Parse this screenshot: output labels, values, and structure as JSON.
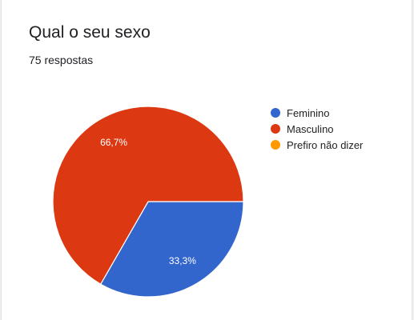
{
  "header": {
    "title": "Qual o seu sexo",
    "subtitle": "75 respostas"
  },
  "chart_data": {
    "type": "pie",
    "title": "Qual o seu sexo",
    "categories": [
      "Feminino",
      "Masculino",
      "Prefiro não dizer"
    ],
    "values": [
      33.3,
      66.7,
      0
    ],
    "data_labels": [
      "33,3%",
      "66,7%",
      ""
    ],
    "colors": [
      "#3366cc",
      "#dc3912",
      "#ff9900"
    ],
    "legend_position": "right"
  }
}
